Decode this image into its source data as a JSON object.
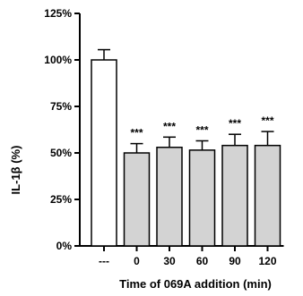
{
  "chart_data": {
    "type": "bar",
    "xlabel": "Time of 069A addition (min)",
    "ylabel": "IL-1β (%)",
    "ylim": [
      0,
      125
    ],
    "yticks": [
      0,
      25,
      50,
      75,
      100,
      125
    ],
    "ytick_labels": [
      "0%",
      "25%",
      "50%",
      "75%",
      "100%",
      "125%"
    ],
    "categories": [
      "---",
      "0",
      "30",
      "60",
      "90",
      "120"
    ],
    "values": [
      100,
      50,
      53,
      51.5,
      54,
      54
    ],
    "errors": [
      5.5,
      5,
      5.5,
      5,
      6,
      7.5
    ],
    "significance": [
      "",
      "***",
      "***",
      "***",
      "***",
      "***"
    ],
    "bar_colors": [
      "#ffffff",
      "#d3d3d3",
      "#d3d3d3",
      "#d3d3d3",
      "#d3d3d3",
      "#d3d3d3"
    ],
    "grid": false,
    "legend": "none"
  }
}
